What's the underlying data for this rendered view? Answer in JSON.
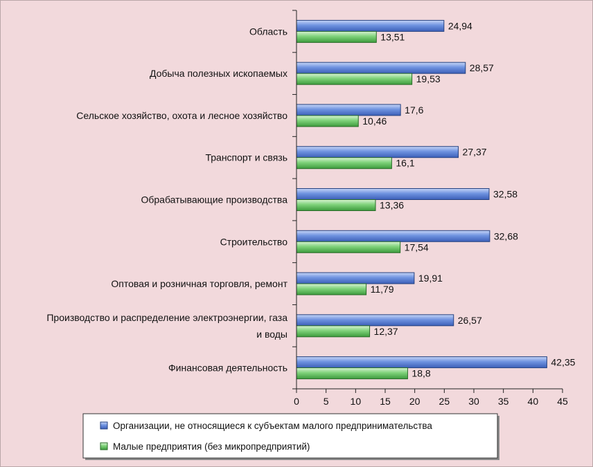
{
  "chart_data": {
    "type": "bar",
    "orientation": "horizontal",
    "categories": [
      "Область",
      "Добыча полезных ископаемых",
      "Сельское хозяйство, охота и лесное хозяйство",
      "Транспорт и связь",
      "Обрабатывающие производства",
      "Строительство",
      "Оптовая и розничная торговля, ремонт",
      "Производство и распределение электроэнергии, газа и воды",
      "Финансовая деятельность"
    ],
    "category_lines": [
      [
        "Область"
      ],
      [
        "Добыча полезных ископаемых"
      ],
      [
        "Сельское хозяйство, охота и лесное хозяйство"
      ],
      [
        "Транспорт и связь"
      ],
      [
        "Обрабатывающие производства"
      ],
      [
        "Строительство"
      ],
      [
        "Оптовая и розничная торговля, ремонт"
      ],
      [
        "Производство и распределение электроэнергии, газа",
        "и воды"
      ],
      [
        "Финансовая деятельность"
      ]
    ],
    "series": [
      {
        "name": "Организации, не относящиеся к субъектам малого предпринимательства",
        "color": "#5b7fd1",
        "values": [
          24.94,
          28.57,
          17.6,
          27.37,
          32.58,
          32.68,
          19.91,
          26.57,
          42.35
        ],
        "labels": [
          "24,94",
          "28,57",
          "17,6",
          "27,37",
          "32,58",
          "32,68",
          "19,91",
          "26,57",
          "42,35"
        ]
      },
      {
        "name": "Малые предприятия (без микропредприятий)",
        "color": "#57b957",
        "values": [
          13.51,
          19.53,
          10.46,
          16.1,
          13.36,
          17.54,
          11.79,
          12.37,
          18.8
        ],
        "labels": [
          "13,51",
          "19,53",
          "10,46",
          "16,1",
          "13,36",
          "17,54",
          "11,79",
          "12,37",
          "18,8"
        ]
      }
    ],
    "xlim": [
      0,
      45
    ],
    "xticks": [
      0,
      5,
      10,
      15,
      20,
      25,
      30,
      35,
      40,
      45
    ],
    "grid": false,
    "legend_position": "bottom"
  }
}
